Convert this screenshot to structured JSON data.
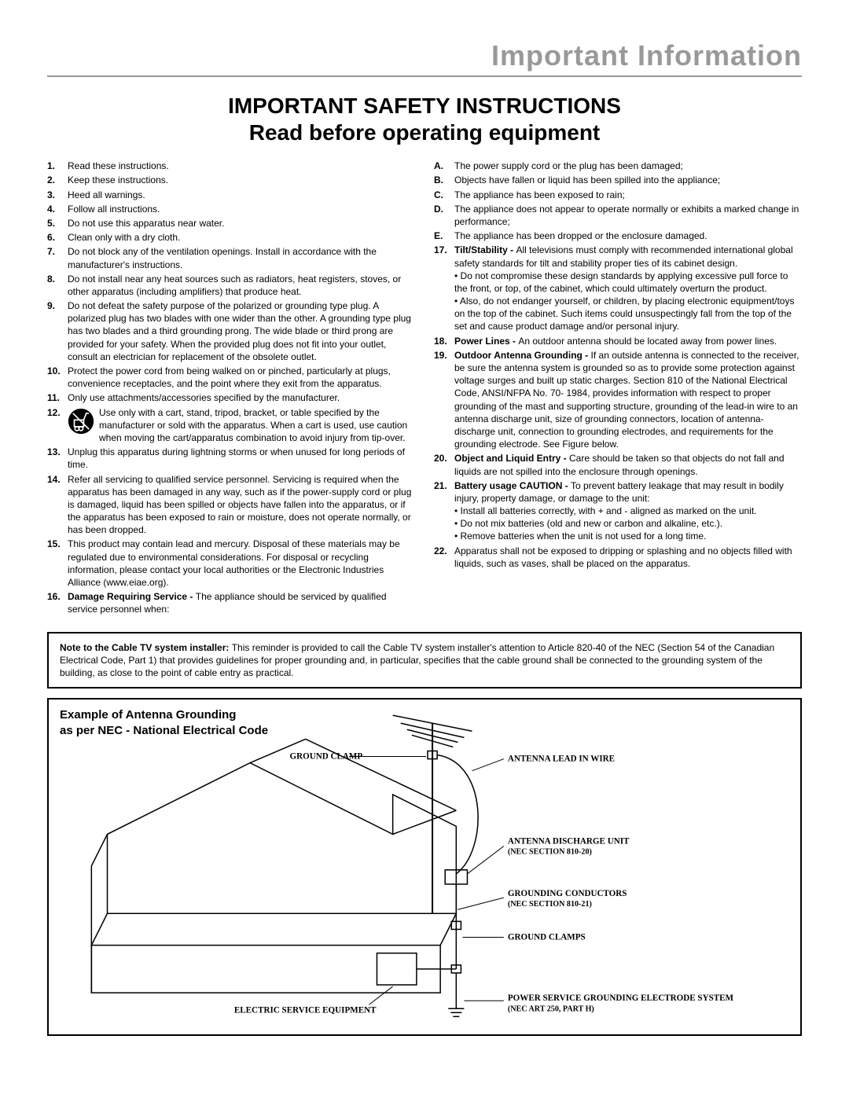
{
  "header": {
    "title": "Important Information"
  },
  "title_line1": "IMPORTANT SAFETY INSTRUCTIONS",
  "title_line2": "Read before operating equipment",
  "left_items": [
    {
      "n": "1.",
      "t": "Read these instructions."
    },
    {
      "n": "2.",
      "t": "Keep these instructions."
    },
    {
      "n": "3.",
      "t": "Heed all warnings."
    },
    {
      "n": "4.",
      "t": "Follow all instructions."
    },
    {
      "n": "5.",
      "t": "Do not use this apparatus near water."
    },
    {
      "n": "6.",
      "t": "Clean only with a dry cloth."
    },
    {
      "n": "7.",
      "t": "Do not block any of the ventilation openings. Install in accordance with the manufacturer's instructions."
    },
    {
      "n": "8.",
      "t": "Do not install near any heat sources such as radiators, heat registers, stoves, or other apparatus (including amplifiers) that produce heat."
    },
    {
      "n": "9.",
      "t": "Do not defeat the safety purpose of the polarized or grounding type plug. A polarized plug has two blades with one wider than the other. A grounding type plug has two blades and a third grounding prong. The wide blade or third prong are provided for your safety. When the provided plug does not fit into your outlet, consult an electrician for replacement of the obsolete outlet."
    },
    {
      "n": "10.",
      "t": "Protect the power cord from being walked on or pinched, particularly at plugs, convenience receptacles, and the point where they exit from the apparatus."
    },
    {
      "n": "11.",
      "t": "Only use attachments/accessories specified by the manufacturer."
    },
    {
      "n": "12.",
      "t": "Use only with a cart, stand, tripod, bracket, or table specified by the manufacturer or sold with the apparatus. When a cart is used, use caution when moving the cart/apparatus combination to avoid injury from tip-over.",
      "icon": true
    },
    {
      "n": "13.",
      "t": "Unplug this apparatus during lightning storms or when unused for long periods of time."
    },
    {
      "n": "14.",
      "t": "Refer all servicing to qualified service personnel. Servicing is required when the apparatus has been damaged in any way, such as if the power-supply cord or plug is damaged, liquid has been spilled or objects have fallen into the apparatus, or if the apparatus has been exposed to rain or moisture, does not operate normally, or has been dropped."
    },
    {
      "n": "15.",
      "t": "This product may contain lead and mercury. Disposal of these materials may be regulated due to environmental considerations. For disposal or recycling information, please contact your local authorities or the Electronic Industries Alliance (www.eiae.org)."
    },
    {
      "n": "16.",
      "lead": "Damage Requiring Service - ",
      "t": "The appliance should be serviced by qualified service personnel when:"
    }
  ],
  "right_sub": [
    {
      "n": "A.",
      "t": "The power supply cord or the plug has been damaged;"
    },
    {
      "n": "B.",
      "t": "Objects have fallen or liquid has been spilled into the appliance;"
    },
    {
      "n": "C.",
      "t": "The appliance has been exposed to rain;"
    },
    {
      "n": "D.",
      "t": "The appliance does not appear to operate normally or exhibits a marked change in performance;"
    },
    {
      "n": "E.",
      "t": "The appliance has been dropped or the enclosure damaged."
    }
  ],
  "right_items": [
    {
      "n": "17.",
      "lead": "Tilt/Stability - ",
      "t": "All televisions must comply with recommended international global safety standards for tilt and stability proper ties of its cabinet design.",
      "bullets": [
        "Do not compromise these design standards by applying excessive pull force to the front, or top, of the cabinet, which could ultimately overturn the product.",
        "Also, do not endanger yourself, or children, by placing electronic equipment/toys on the top of the cabinet. Such items could unsuspectingly fall from the top of the set and cause product damage and/or personal injury."
      ]
    },
    {
      "n": "18.",
      "lead": "Power Lines - ",
      "t": "An outdoor antenna should be located away from power lines."
    },
    {
      "n": "19.",
      "lead": "Outdoor Antenna Grounding - ",
      "t": "If an outside antenna is connected to the receiver, be sure the antenna system is grounded so as to provide some protection against voltage surges and built up static charges. Section 810 of the National Electrical Code, ANSI/NFPA No. 70- 1984, provides information with respect to proper grounding of the mast and supporting structure, grounding of the lead-in wire to an antenna discharge unit, size of grounding connectors, location of antenna-discharge unit, connection to grounding electrodes, and requirements for the grounding electrode. See Figure below."
    },
    {
      "n": "20.",
      "lead": "Object and Liquid Entry - ",
      "t": "Care should be taken so that objects do not fall and liquids are not spilled into the enclosure through openings."
    },
    {
      "n": "21.",
      "lead": "Battery usage CAUTION - ",
      "t": "To prevent battery leakage that may result in bodily injury, property damage, or damage to the unit:",
      "bullets": [
        "Install all batteries correctly, with + and - aligned as marked on the unit.",
        "Do not mix batteries (old and new or carbon and alkaline, etc.).",
        "Remove batteries when the unit is not used for a long time."
      ]
    },
    {
      "n": "22.",
      "t": "Apparatus shall not be exposed to dripping or splashing and no objects filled with liquids, such as vases, shall be placed on the apparatus."
    }
  ],
  "note": {
    "lead": "Note to the Cable TV system installer: ",
    "text": "This reminder is provided to call the Cable TV system installer's attention to Article 820-40 of the NEC (Section 54 of the Canadian Electrical Code, Part 1) that provides guidelines for proper grounding and, in particular, specifies that the cable ground shall be connected to the grounding system of the building, as close to the point of cable entry as practical."
  },
  "diagram": {
    "title_line1": "Example of Antenna Grounding",
    "title_line2": "as per NEC - National Electrical Code",
    "labels": {
      "ground_clamp_top": "GROUND CLAMP",
      "antenna_lead": "ANTENNA LEAD IN WIRE",
      "discharge_unit": "ANTENNA DISCHARGE UNIT",
      "discharge_sub": "(NEC SECTION 810-20)",
      "grounding_cond": "GROUNDING CONDUCTORS",
      "grounding_cond_sub": "(NEC SECTION 810-21)",
      "ground_clamps": "GROUND CLAMPS",
      "electric_service": "ELECTRIC SERVICE EQUIPMENT",
      "power_service": "POWER SERVICE GROUNDING ELECTRODE SYSTEM",
      "power_service_sub": "(NEC ART 250, PART H)"
    },
    "colors": {
      "stroke": "#000000",
      "fill": "#ffffff"
    }
  }
}
